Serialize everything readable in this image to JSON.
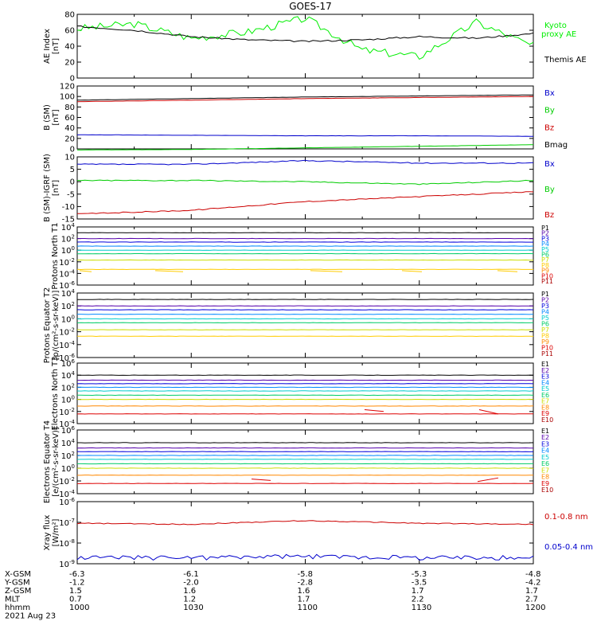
{
  "title": "GOES-17",
  "date": "2021 Aug 23",
  "ephemeris": {
    "labels": [
      "X-GSM",
      "Y-GSM",
      "Z-GSM",
      "MLT",
      "hhmm"
    ],
    "columns": [
      [
        "-6.3",
        "-1.2",
        "1.5",
        "0.7",
        "1000"
      ],
      [
        "-6.1",
        "-2.0",
        "1.6",
        "1.2",
        "1030"
      ],
      [
        "-5.8",
        "-2.8",
        "1.6",
        "1.7",
        "1100"
      ],
      [
        "-5.3",
        "-3.5",
        "1.7",
        "2.2",
        "1130"
      ],
      [
        "-4.8",
        "-4.2",
        "1.7",
        "2.7",
        "1200"
      ]
    ]
  },
  "colors": {
    "kyoto": "#00ee00",
    "themis": "#000000",
    "bx": "#0000cc",
    "by": "#00cc00",
    "bz": "#cc0000",
    "bmag": "#000000",
    "xray_long": "#cc0000",
    "xray_short": "#0000cc"
  },
  "chart_data": [
    {
      "type": "line",
      "ylabel": "AE Index [nT]",
      "ylim": [
        0,
        80
      ],
      "yticks": [
        "0",
        "20",
        "40",
        "60",
        "80"
      ],
      "x": [
        "1000",
        "1015",
        "1030",
        "1045",
        "1100",
        "1115",
        "1130",
        "1145",
        "1200"
      ],
      "series": [
        {
          "name": "Kyoto proxy AE",
          "values": [
            62,
            68,
            50,
            58,
            75,
            35,
            27,
            70,
            40
          ]
        },
        {
          "name": "Themis AE",
          "values": [
            65,
            60,
            52,
            48,
            46,
            48,
            52,
            50,
            56
          ]
        }
      ]
    },
    {
      "type": "line",
      "ylabel": "B (SM) [nT]",
      "ylim": [
        0,
        120
      ],
      "yticks": [
        "0",
        "20",
        "40",
        "60",
        "80",
        "100",
        "120"
      ],
      "x": [
        "1000",
        "1030",
        "1100",
        "1130",
        "1200"
      ],
      "series": [
        {
          "name": "Bx",
          "values": [
            27,
            26,
            25,
            25,
            24
          ]
        },
        {
          "name": "By",
          "values": [
            -2,
            -1,
            2,
            5,
            8
          ]
        },
        {
          "name": "Bz",
          "values": [
            90,
            93,
            96,
            98,
            100
          ]
        },
        {
          "name": "Bmag",
          "values": [
            93,
            96,
            99,
            101,
            103
          ]
        }
      ]
    },
    {
      "type": "line",
      "ylabel": "B (SM)-IGRF (SM) [nT]",
      "ylim": [
        -15,
        10
      ],
      "yticks": [
        "-15",
        "-10",
        "-5",
        "0",
        "5",
        "10"
      ],
      "x": [
        "1000",
        "1030",
        "1100",
        "1130",
        "1200"
      ],
      "series": [
        {
          "name": "Bx",
          "values": [
            7,
            7,
            8.5,
            7.5,
            7.5
          ]
        },
        {
          "name": "By",
          "values": [
            0.5,
            0.5,
            0,
            -1,
            0.5
          ]
        },
        {
          "name": "Bz",
          "values": [
            -13,
            -11.5,
            -8,
            -6,
            -4
          ]
        }
      ]
    },
    {
      "type": "line",
      "ylabel": "Protons North T1",
      "yscale": "log",
      "yticks": [
        "10^-6",
        "10^-4",
        "10^-2",
        "10^0",
        "10^2",
        "10^4"
      ],
      "channels": [
        "P1",
        "P2",
        "P3",
        "P4",
        "P5",
        "P6",
        "P7",
        "P8",
        "P9",
        "P10",
        "P11"
      ],
      "levels": [
        1000,
        100,
        25,
        5,
        1,
        0.25,
        0.02,
        0.0005,
        0,
        0,
        0
      ]
    },
    {
      "type": "line",
      "ylabel": "Protons Equator T2 [p/(cm²-s-sr-keV)]",
      "yscale": "log",
      "yticks": [
        "10^-6",
        "10^-4",
        "10^-2",
        "10^0",
        "10^2",
        "10^4"
      ],
      "channels": [
        "P1",
        "P2",
        "P3",
        "P4",
        "P5",
        "P6",
        "P7",
        "P8",
        "P9",
        "P10",
        "P11"
      ],
      "levels": [
        1000,
        100,
        25,
        5,
        1,
        0.25,
        0.02,
        0.002,
        0,
        0,
        0
      ]
    },
    {
      "type": "line",
      "ylabel": "Electrons North T3",
      "yscale": "log",
      "yticks": [
        "10^-4",
        "10^-2",
        "10^0",
        "10^2",
        "10^4",
        "10^6"
      ],
      "channels": [
        "E1",
        "E2",
        "E3",
        "E4",
        "E5",
        "E6",
        "E7",
        "E8",
        "E9",
        "E10"
      ],
      "levels": [
        10000,
        1500,
        400,
        100,
        25,
        5,
        1,
        0.08,
        0.004,
        0
      ]
    },
    {
      "type": "line",
      "ylabel": "Electrons Equator T4 [e/(cm²-s-sr-keV)]",
      "yscale": "log",
      "yticks": [
        "10^-4",
        "10^-2",
        "10^0",
        "10^2",
        "10^4",
        "10^6"
      ],
      "channels": [
        "E1",
        "E2",
        "E3",
        "E4",
        "E5",
        "E6",
        "E7",
        "E8",
        "E9",
        "E10"
      ],
      "levels": [
        10000,
        1500,
        400,
        100,
        25,
        5,
        1,
        0.08,
        0.004,
        0
      ]
    },
    {
      "type": "line",
      "ylabel": "Xray flux [W/m²]",
      "yscale": "log",
      "yticks": [
        "10^-9",
        "10^-8",
        "10^-7",
        "10^-6"
      ],
      "x": [
        "1000",
        "1030",
        "1100",
        "1130",
        "1200"
      ],
      "series": [
        {
          "name": "0.1-0.8 nm",
          "values": [
            9e-08,
            8e-08,
            1.2e-07,
            9e-08,
            8e-08
          ]
        },
        {
          "name": "0.05-0.4 nm",
          "values": [
            2e-09,
            2e-09,
            2.3e-09,
            2e-09,
            2e-09
          ]
        }
      ]
    }
  ]
}
